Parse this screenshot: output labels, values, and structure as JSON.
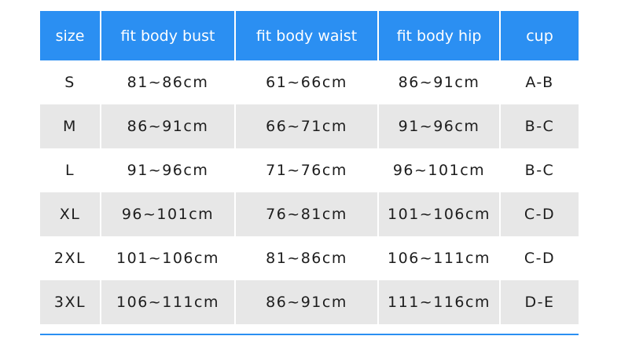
{
  "headers": [
    "size",
    "fit body bust",
    "fit body waist",
    "fit body hip",
    "cup"
  ],
  "rows": [
    [
      "S",
      "81~86cm",
      "61~66cm",
      "86~91cm",
      "A-B"
    ],
    [
      "M",
      "86~91cm",
      "66~71cm",
      "91~96cm",
      "B-C"
    ],
    [
      "L",
      "91~96cm",
      "71~76cm",
      "96~101cm",
      "B-C"
    ],
    [
      "XL",
      "96~101cm",
      "76~81cm",
      "101~106cm",
      "C-D"
    ],
    [
      "2XL",
      "101~106cm",
      "81~86cm",
      "106~111cm",
      "C-D"
    ],
    [
      "3XL",
      "106~111cm",
      "86~91cm",
      "111~116cm",
      "D-E"
    ]
  ],
  "colors": {
    "header_bg": "#2b8ff2",
    "stripe_bg": "#e7e7e7",
    "text": "#1d1d1d"
  }
}
